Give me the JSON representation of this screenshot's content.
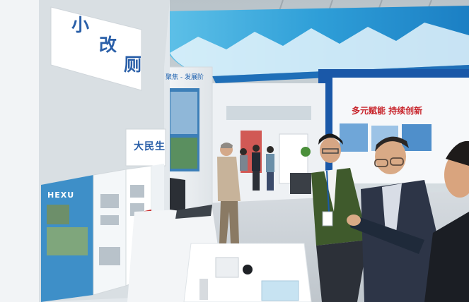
{
  "signs": {
    "big_panel_chars": [
      "小",
      "改",
      "厕"
    ],
    "panel2_chars": [
      "大",
      "民",
      "生"
    ],
    "hexu_logo": "HEXU",
    "backdrop_left": "聚焦 - 发展阶",
    "backdrop_right": "多元赋能 持续创新"
  },
  "colors": {
    "accent_blue": "#1b5fae",
    "sign_text": "#2a5fa8",
    "red_text": "#c8252c"
  }
}
